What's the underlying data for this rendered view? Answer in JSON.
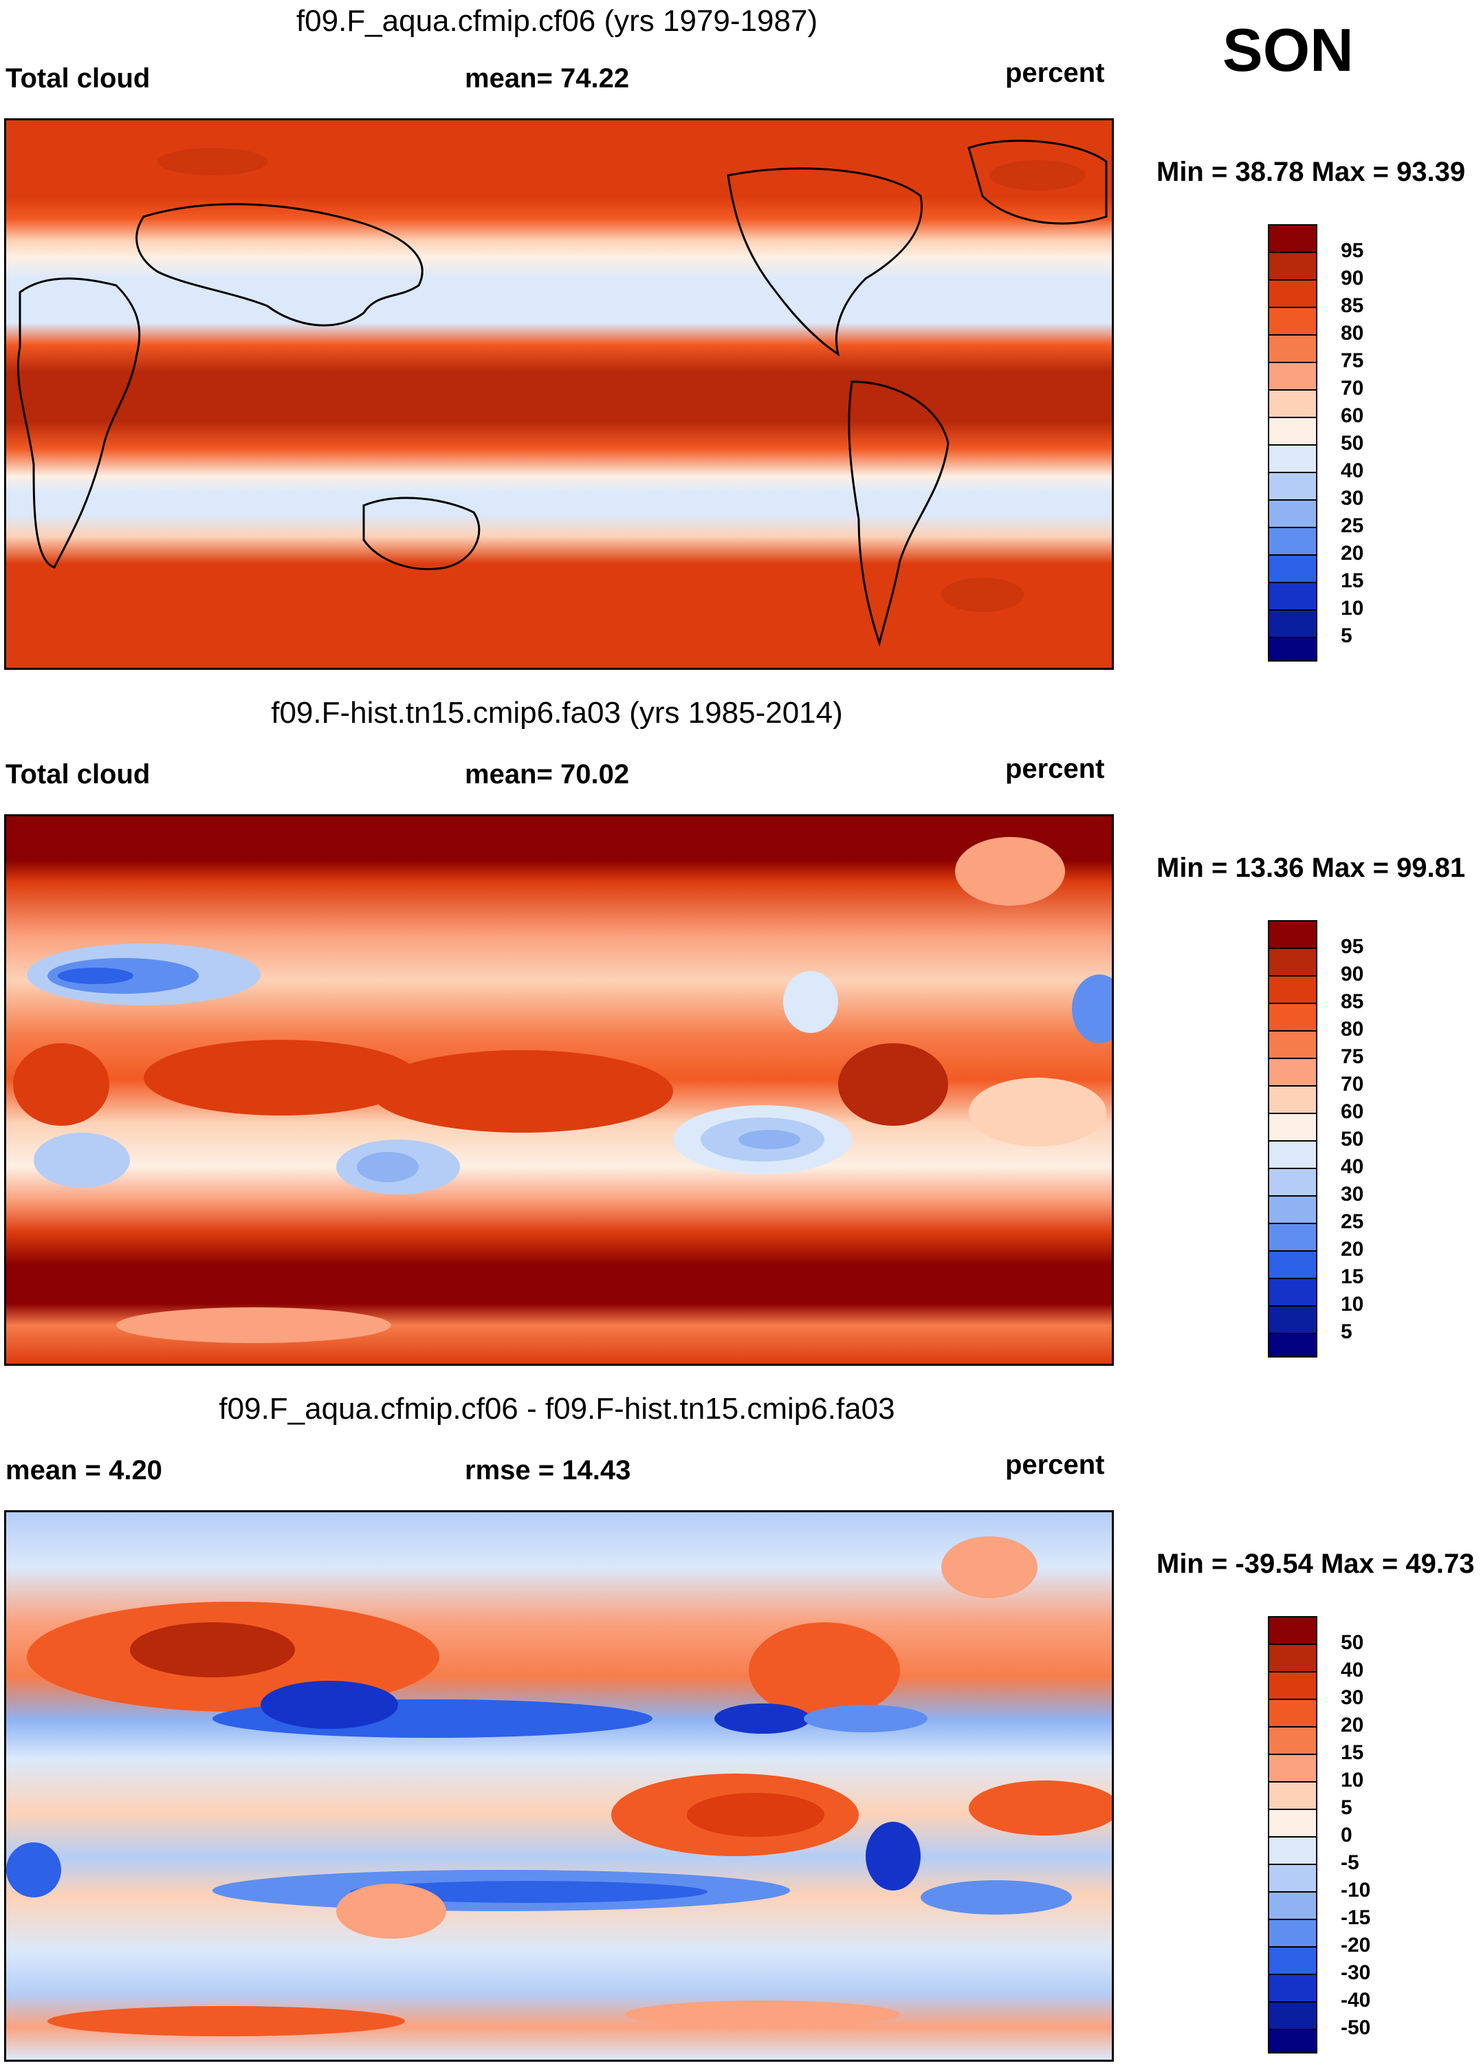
{
  "season": "SON",
  "panels": [
    {
      "title": "f09.F_aqua.cfmip.cf06 (yrs 1979-1987)",
      "left_label": "Total cloud",
      "center_label": "mean=  74.22",
      "right_label": "percent",
      "minmax": "Min =  38.78 Max =  93.39",
      "colorbar_labels": [
        "95",
        "90",
        "85",
        "80",
        "75",
        "70",
        "60",
        "50",
        "40",
        "30",
        "25",
        "20",
        "15",
        "10",
        "5"
      ]
    },
    {
      "title": "f09.F-hist.tn15.cmip6.fa03 (yrs 1985-2014)",
      "left_label": "Total cloud",
      "center_label": "mean=  70.02",
      "right_label": "percent",
      "minmax": "Min =  13.36 Max =  99.81",
      "colorbar_labels": [
        "95",
        "90",
        "85",
        "80",
        "75",
        "70",
        "60",
        "50",
        "40",
        "30",
        "25",
        "20",
        "15",
        "10",
        "5"
      ]
    },
    {
      "title": "f09.F_aqua.cfmip.cf06 - f09.F-hist.tn15.cmip6.fa03",
      "left_label": "mean =   4.20",
      "center_label": "rmse =  14.43",
      "right_label": "percent",
      "minmax": "Min = -39.54 Max =  49.73",
      "colorbar_labels": [
        "50",
        "40",
        "30",
        "20",
        "15",
        "10",
        "5",
        "0",
        "-5",
        "-10",
        "-15",
        "-20",
        "-30",
        "-40",
        "-50"
      ]
    }
  ],
  "colors": {
    "abs_scale": [
      "#8b0000",
      "#b8280a",
      "#dd3c0e",
      "#f25a24",
      "#f67d4b",
      "#fba27f",
      "#fdd2b7",
      "#fdf0e4",
      "#dbe9fb",
      "#b4cdf6",
      "#8fb3f2",
      "#5e8ff0",
      "#2d61e8",
      "#1434c9",
      "#0a1ea0",
      "#000080"
    ],
    "diff_scale": [
      "#8b0000",
      "#b8280a",
      "#dd3c0e",
      "#f25a24",
      "#f67d4b",
      "#fba27f",
      "#fdd2b7",
      "#fdf0e4",
      "#dbe9fb",
      "#b4cdf6",
      "#8fb3f2",
      "#5e8ff0",
      "#2d61e8",
      "#1434c9",
      "#0a1ea0",
      "#000080"
    ]
  }
}
